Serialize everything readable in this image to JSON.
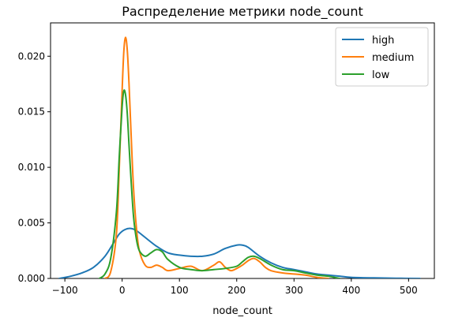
{
  "chart_data": {
    "type": "line",
    "title": "Распределение метрики node_count",
    "xlabel": "node_count",
    "ylabel": "",
    "xlim": [
      -125,
      545
    ],
    "ylim": [
      0,
      0.023
    ],
    "xticks": [
      -100,
      0,
      100,
      200,
      300,
      400,
      500
    ],
    "yticks": [
      0.0,
      0.005,
      0.01,
      0.015,
      0.02
    ],
    "xtick_labels": [
      "−100",
      "0",
      "100",
      "200",
      "300",
      "400",
      "500"
    ],
    "ytick_labels": [
      "0.000",
      "0.005",
      "0.010",
      "0.015",
      "0.020"
    ],
    "legend": "top-right",
    "grid": false,
    "series": [
      {
        "name": "high",
        "color": "#1f77b4",
        "x": [
          -110,
          -90,
          -70,
          -50,
          -30,
          -15,
          -5,
          5,
          15,
          25,
          40,
          60,
          80,
          100,
          120,
          140,
          160,
          180,
          200,
          210,
          220,
          240,
          260,
          280,
          300,
          320,
          340,
          360,
          380,
          400,
          440,
          480,
          520
        ],
        "y": [
          0.0,
          0.0002,
          0.0005,
          0.001,
          0.002,
          0.0032,
          0.004,
          0.0044,
          0.0045,
          0.0043,
          0.0037,
          0.0029,
          0.0023,
          0.0021,
          0.002,
          0.002,
          0.0022,
          0.0027,
          0.003,
          0.003,
          0.0028,
          0.002,
          0.0014,
          0.001,
          0.0008,
          0.0006,
          0.0004,
          0.0003,
          0.0002,
          0.0001,
          5e-05,
          2e-05,
          0.0
        ]
      },
      {
        "name": "medium",
        "color": "#ff7f0e",
        "x": [
          -30,
          -20,
          -10,
          -5,
          0,
          3,
          6,
          9,
          12,
          16,
          20,
          25,
          30,
          40,
          50,
          60,
          70,
          80,
          100,
          120,
          140,
          160,
          170,
          180,
          190,
          200,
          210,
          220,
          230,
          240,
          250,
          260,
          280,
          300,
          320,
          340,
          360
        ],
        "y": [
          0.0,
          0.0006,
          0.004,
          0.01,
          0.017,
          0.0205,
          0.0217,
          0.0205,
          0.0175,
          0.0125,
          0.008,
          0.0045,
          0.0025,
          0.0012,
          0.001,
          0.0012,
          0.001,
          0.0007,
          0.0009,
          0.0011,
          0.0007,
          0.0012,
          0.0015,
          0.001,
          0.0007,
          0.0009,
          0.0012,
          0.0016,
          0.0018,
          0.0015,
          0.001,
          0.0007,
          0.0005,
          0.0004,
          0.0003,
          0.0001,
          0.0
        ]
      },
      {
        "name": "low",
        "color": "#2ca02c",
        "x": [
          -40,
          -30,
          -20,
          -10,
          -5,
          0,
          3,
          6,
          9,
          12,
          16,
          20,
          25,
          30,
          40,
          50,
          60,
          70,
          80,
          100,
          120,
          140,
          160,
          180,
          200,
          210,
          220,
          230,
          240,
          260,
          280,
          300,
          320,
          340,
          360,
          380
        ],
        "y": [
          0.0,
          0.0004,
          0.0018,
          0.006,
          0.011,
          0.0155,
          0.0169,
          0.0165,
          0.0148,
          0.012,
          0.0085,
          0.0055,
          0.0035,
          0.0025,
          0.002,
          0.0023,
          0.0026,
          0.0024,
          0.0017,
          0.001,
          0.0008,
          0.0007,
          0.0008,
          0.0009,
          0.0011,
          0.0015,
          0.0019,
          0.002,
          0.0018,
          0.0012,
          0.0008,
          0.0007,
          0.0005,
          0.0003,
          0.0002,
          0.0
        ]
      }
    ]
  }
}
